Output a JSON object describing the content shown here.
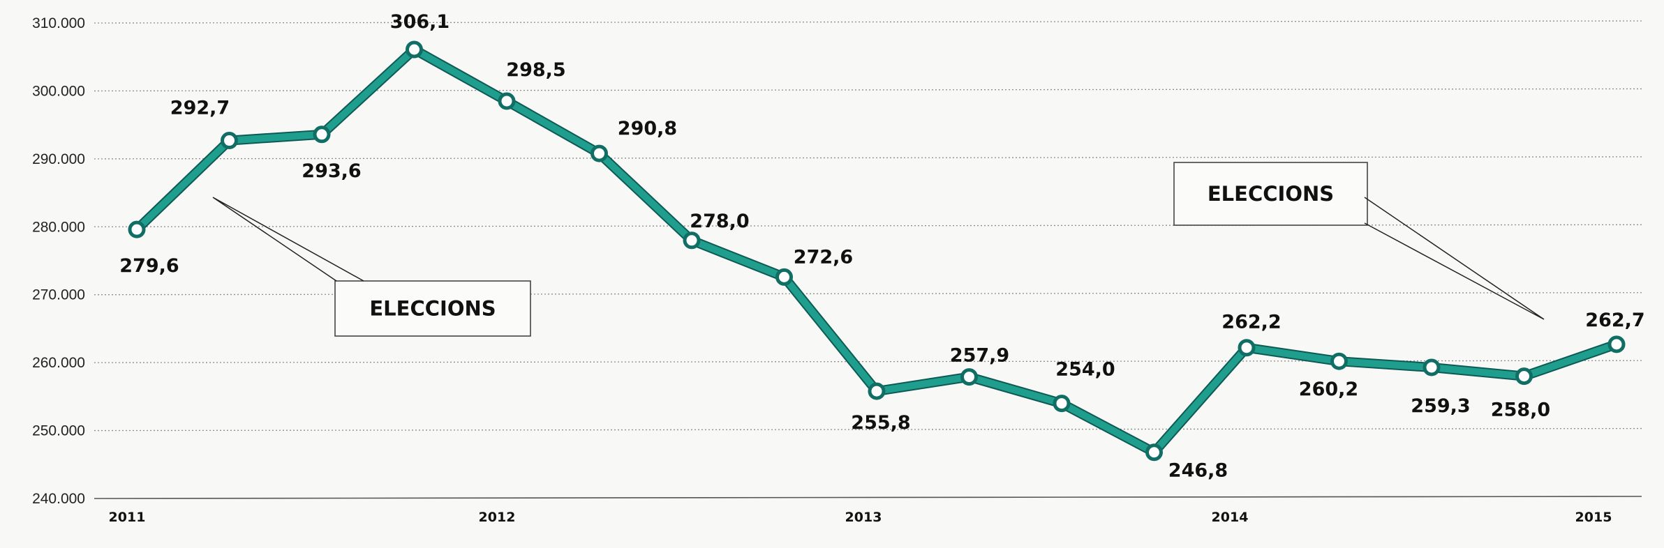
{
  "chart_data": {
    "type": "line",
    "ylim": [
      240000,
      310000
    ],
    "y_ticks": [
      "310.000",
      "300.000",
      "290.000",
      "280.000",
      "270.000",
      "260.000",
      "250.000",
      "240.000"
    ],
    "x_ticks": [
      "2011",
      "2012",
      "2013",
      "2014",
      "2015"
    ],
    "grid": true,
    "line_color": "#1f9e8e",
    "series": [
      {
        "values": [
          279.6,
          292.7,
          293.6,
          306.1,
          298.5,
          290.8,
          278.0,
          272.6,
          255.8,
          257.9,
          254.0,
          246.8,
          262.2,
          260.2,
          259.3,
          258.0,
          262.7
        ],
        "labels": [
          "279,6",
          "292,7",
          "293,6",
          "306,1",
          "298,5",
          "290,8",
          "278,0",
          "272,6",
          "255,8",
          "257,9",
          "254,0",
          "246,8",
          "262,2",
          "260,2",
          "259,3",
          "258,0",
          "262,7"
        ]
      }
    ],
    "annotations": [
      {
        "text": "ELECCIONS"
      },
      {
        "text": "ELECCIONS"
      }
    ]
  }
}
